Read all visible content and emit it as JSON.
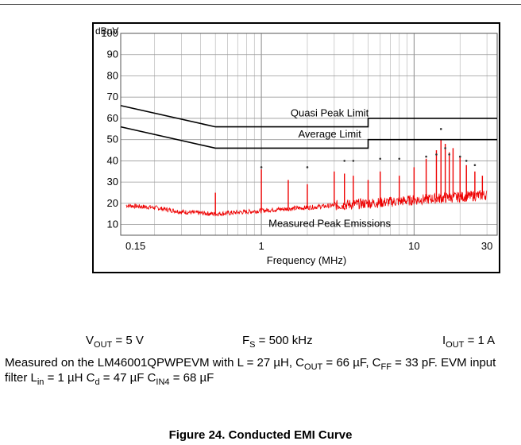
{
  "conditions": {
    "vout": {
      "sym": "V",
      "sub": "OUT",
      "rest": " = 5 V"
    },
    "fs": {
      "sym": "F",
      "sub": "S",
      "rest": " = 500 kHz"
    },
    "iout": {
      "sym": "I",
      "sub": "OUT",
      "rest": " = 1 A"
    }
  },
  "caption": {
    "t1": "Measured on the LM46001QPWPEVM with L = 27 µH, C",
    "s1": "OUT",
    "t2": " = 66 µF, C",
    "s2": "FF",
    "t3": " = 33 pF. EVM input filter L",
    "s3": "in",
    "t4": " = 1 µH C",
    "s4": "d",
    "t5": " = 47 µF C",
    "s5": "IN4",
    "t6": " = 68 µF"
  },
  "figure_title": "Figure 24. Conducted EMI Curve",
  "chart_data": {
    "type": "line",
    "xlabel": "Frequency (MHz)",
    "ylabel": "dBuV",
    "x_scale": "log",
    "xlim": [
      0.12,
      35
    ],
    "ylim": [
      5,
      100
    ],
    "x_ticks": [
      {
        "value": 0.15,
        "label": "0.15"
      },
      {
        "value": 1,
        "label": "1"
      },
      {
        "value": 10,
        "label": "10"
      },
      {
        "value": 30,
        "label": "30"
      }
    ],
    "y_ticks": [
      10,
      20,
      30,
      40,
      50,
      60,
      70,
      80,
      90,
      100
    ],
    "grid": true,
    "series": [
      {
        "name": "Quasi Peak Limit",
        "color": "#000000",
        "points": [
          [
            0.12,
            66
          ],
          [
            0.5,
            56
          ],
          [
            5,
            56
          ],
          [
            5,
            60
          ],
          [
            35,
            60
          ]
        ]
      },
      {
        "name": "Average Limit",
        "color": "#000000",
        "points": [
          [
            0.12,
            56
          ],
          [
            0.5,
            46
          ],
          [
            5,
            46
          ],
          [
            5,
            50
          ],
          [
            35,
            50
          ]
        ]
      },
      {
        "name": "Measured Peak Emissions",
        "color": "#ee0000",
        "points": [
          [
            0.13,
            19
          ],
          [
            0.2,
            18
          ],
          [
            0.3,
            16
          ],
          [
            0.5,
            15
          ],
          [
            0.8,
            16
          ],
          [
            1.2,
            17
          ],
          [
            2,
            18
          ],
          [
            3,
            19
          ],
          [
            5,
            20
          ],
          [
            8,
            21
          ],
          [
            12,
            22
          ],
          [
            20,
            23
          ],
          [
            30,
            24
          ]
        ],
        "spurs": [
          [
            0.5,
            25
          ],
          [
            1.0,
            36
          ],
          [
            1.5,
            31
          ],
          [
            2.0,
            29
          ],
          [
            3.0,
            35
          ],
          [
            3.5,
            34
          ],
          [
            4.0,
            33
          ],
          [
            5.0,
            31
          ],
          [
            6.0,
            35
          ],
          [
            8.0,
            33
          ],
          [
            10.0,
            37
          ],
          [
            12.0,
            41
          ],
          [
            14.0,
            45
          ],
          [
            15.0,
            50
          ],
          [
            16.0,
            48
          ],
          [
            17.0,
            44
          ],
          [
            18.0,
            46
          ],
          [
            20.0,
            42
          ],
          [
            22.0,
            38
          ],
          [
            25.0,
            35
          ],
          [
            28.0,
            33
          ]
        ]
      }
    ],
    "quasi_peak_markers": [
      [
        1.0,
        37
      ],
      [
        2.0,
        37
      ],
      [
        3.5,
        40
      ],
      [
        4.0,
        40
      ],
      [
        6.0,
        41
      ],
      [
        8.0,
        41
      ],
      [
        12.0,
        42
      ],
      [
        14.0,
        43
      ],
      [
        15.0,
        55
      ],
      [
        16.0,
        46
      ],
      [
        17.0,
        43
      ],
      [
        20.0,
        42
      ],
      [
        22.0,
        40
      ],
      [
        25.0,
        38
      ]
    ],
    "annotations": [
      {
        "text": "Quasi Peak Limit",
        "x": 2.8,
        "y": 61
      },
      {
        "text": "Average Limit",
        "x": 2.8,
        "y": 51
      },
      {
        "text": "Measured Peak Emissions",
        "x": 2.8,
        "y": 9
      }
    ]
  }
}
